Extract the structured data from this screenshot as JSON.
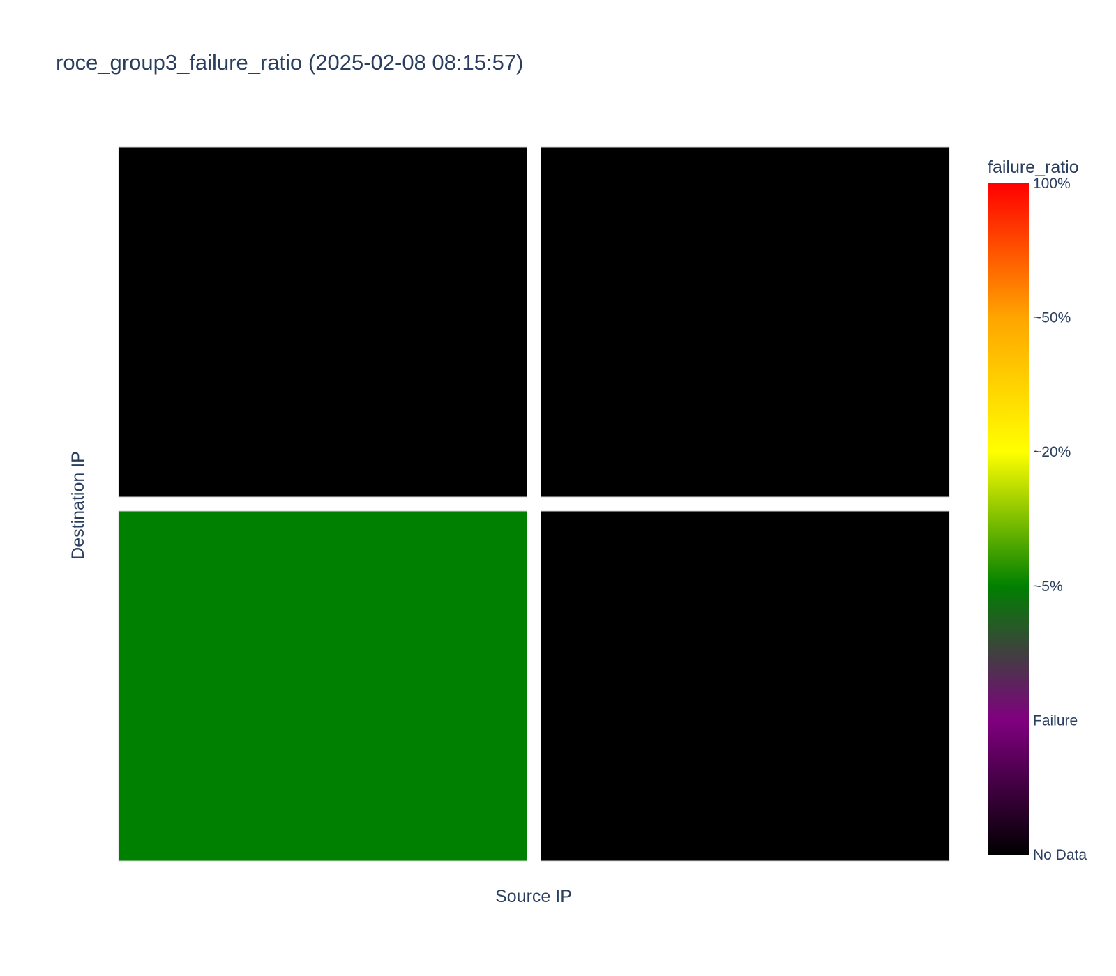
{
  "chart_data": {
    "type": "heatmap",
    "title": "roce_group3_failure_ratio (2025-02-08 08:15:57)",
    "xlabel": "Source IP",
    "ylabel": "Destination IP",
    "rows": 2,
    "cols": 2,
    "cells": [
      {
        "row": 0,
        "col": 0,
        "category": "No Data",
        "color": "#000000"
      },
      {
        "row": 0,
        "col": 1,
        "category": "No Data",
        "color": "#000000"
      },
      {
        "row": 1,
        "col": 0,
        "category": "~5%",
        "color": "#008000"
      },
      {
        "row": 1,
        "col": 1,
        "category": "No Data",
        "color": "#000000"
      }
    ],
    "colorbar": {
      "title": "failure_ratio",
      "ticks": [
        "No Data",
        "Failure",
        "~5%",
        "~20%",
        "~50%",
        "100%"
      ],
      "stops": [
        {
          "offset": 0,
          "color": "#000000"
        },
        {
          "offset": 0.2,
          "color": "#800080"
        },
        {
          "offset": 0.4,
          "color": "#008000"
        },
        {
          "offset": 0.6,
          "color": "#ffff00"
        },
        {
          "offset": 0.8,
          "color": "#ffa500"
        },
        {
          "offset": 1,
          "color": "#ff0000"
        }
      ]
    }
  }
}
